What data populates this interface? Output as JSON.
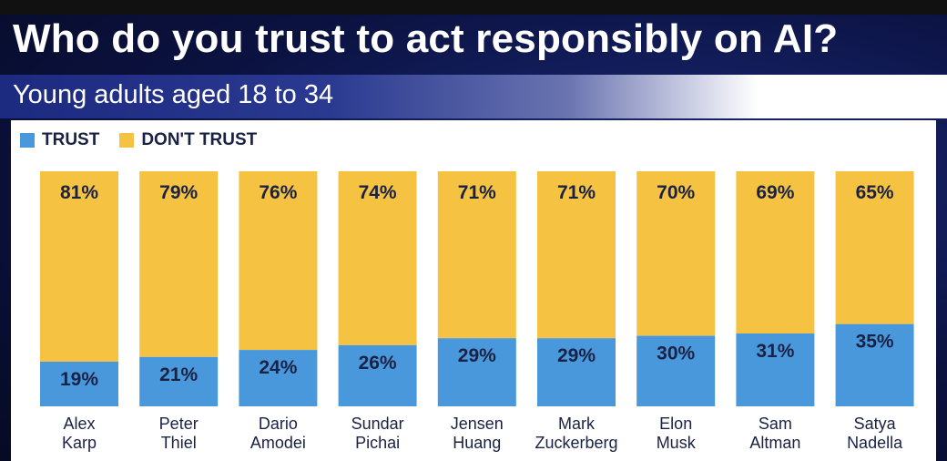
{
  "header": {
    "title": "Who do you trust to act responsibly on AI?",
    "subtitle": "Young adults aged 18 to 34"
  },
  "colors": {
    "trust": "#4a98dc",
    "dont_trust": "#f5c242",
    "text_dark": "#1a2244"
  },
  "chart_data": {
    "type": "bar",
    "stacked": true,
    "title": "Who do you trust to act responsibly on AI?",
    "subtitle": "Young adults aged 18 to 34",
    "categories": [
      [
        "Alex",
        "Karp"
      ],
      [
        "Peter",
        "Thiel"
      ],
      [
        "Dario",
        "Amodei"
      ],
      [
        "Sundar",
        "Pichai"
      ],
      [
        "Jensen",
        "Huang"
      ],
      [
        "Mark",
        "Zuckerberg"
      ],
      [
        "Elon",
        "Musk"
      ],
      [
        "Sam",
        "Altman"
      ],
      [
        "Satya",
        "Nadella"
      ]
    ],
    "series": [
      {
        "name": "TRUST",
        "values": [
          19,
          21,
          24,
          26,
          29,
          29,
          30,
          31,
          35
        ],
        "labels": [
          "19%",
          "21%",
          "24%",
          "26%",
          "29%",
          "29%",
          "30%",
          "31%",
          "35%"
        ]
      },
      {
        "name": "DON'T TRUST",
        "values": [
          81,
          79,
          76,
          74,
          71,
          71,
          70,
          69,
          65
        ],
        "labels": [
          "81%",
          "79%",
          "76%",
          "74%",
          "71%",
          "71%",
          "70%",
          "69%",
          "65%"
        ]
      }
    ],
    "ylim": [
      0,
      100
    ],
    "legend": "top-left",
    "grid": false
  }
}
